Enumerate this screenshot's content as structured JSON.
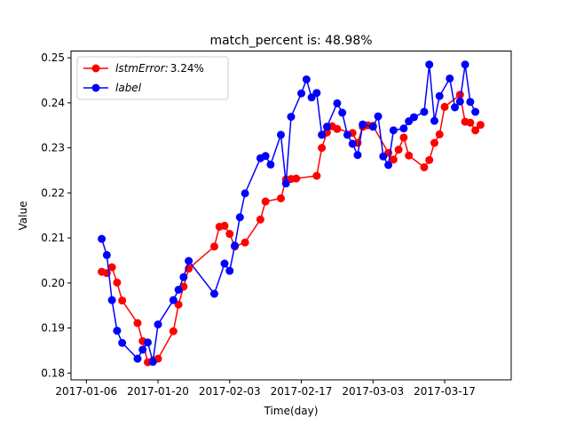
{
  "chart_data": {
    "type": "line",
    "title": "match_percent is: 48.98%",
    "xlabel": "Time(day)",
    "ylabel": "Value",
    "x_axis_type": "date",
    "xlim": [
      "2017-01-03",
      "2017-03-30"
    ],
    "ylim": [
      0.1785,
      0.2515
    ],
    "x_ticks": [
      "2017-01-06",
      "2017-01-20",
      "2017-02-03",
      "2017-02-17",
      "2017-03-03",
      "2017-03-17"
    ],
    "y_ticks": [
      "0.18",
      "0.19",
      "0.20",
      "0.21",
      "0.22",
      "0.23",
      "0.24",
      "0.25"
    ],
    "grid": false,
    "legend_position": "top-left",
    "series": [
      {
        "name": "lstmError: 3.24%",
        "legend_main": "lstmError:",
        "legend_suffix": "3.24%",
        "color": "#ff0000",
        "marker": "circle",
        "x": [
          "2017-01-09",
          "2017-01-10",
          "2017-01-11",
          "2017-01-12",
          "2017-01-13",
          "2017-01-16",
          "2017-01-17",
          "2017-01-18",
          "2017-01-19",
          "2017-01-20",
          "2017-01-23",
          "2017-01-24",
          "2017-01-25",
          "2017-01-26",
          "2017-01-31",
          "2017-02-01",
          "2017-02-02",
          "2017-02-03",
          "2017-02-04",
          "2017-02-06",
          "2017-02-09",
          "2017-02-10",
          "2017-02-13",
          "2017-02-14",
          "2017-02-15",
          "2017-02-16",
          "2017-02-20",
          "2017-02-21",
          "2017-02-22",
          "2017-02-23",
          "2017-02-24",
          "2017-02-27",
          "2017-02-28",
          "2017-03-01",
          "2017-03-02",
          "2017-03-03",
          "2017-03-06",
          "2017-03-07",
          "2017-03-08",
          "2017-03-09",
          "2017-03-10",
          "2017-03-13",
          "2017-03-14",
          "2017-03-15",
          "2017-03-16",
          "2017-03-17",
          "2017-03-20",
          "2017-03-21",
          "2017-03-22",
          "2017-03-23",
          "2017-03-24"
        ],
        "values": [
          0.2025,
          0.2022,
          0.2035,
          0.2001,
          0.1961,
          0.1911,
          0.1871,
          0.1824,
          0.1828,
          0.1832,
          0.1893,
          0.1952,
          0.1992,
          0.2032,
          0.2081,
          0.2125,
          0.2127,
          0.2109,
          0.2081,
          0.209,
          0.2141,
          0.2181,
          0.2188,
          0.223,
          0.2231,
          0.2232,
          0.2238,
          0.23,
          0.2334,
          0.2348,
          0.2342,
          0.2333,
          0.2311,
          0.2347,
          0.235,
          0.2349,
          0.2289,
          0.2274,
          0.2296,
          0.2323,
          0.2283,
          0.2257,
          0.2273,
          0.2311,
          0.233,
          0.2391,
          0.2418,
          0.2358,
          0.2356,
          0.2339,
          0.2351
        ]
      },
      {
        "name": "label",
        "legend_main": "label",
        "legend_suffix": "",
        "color": "#0000ff",
        "marker": "circle",
        "x": [
          "2017-01-09",
          "2017-01-10",
          "2017-01-11",
          "2017-01-12",
          "2017-01-13",
          "2017-01-16",
          "2017-01-17",
          "2017-01-18",
          "2017-01-19",
          "2017-01-20",
          "2017-01-23",
          "2017-01-24",
          "2017-01-25",
          "2017-01-26",
          "2017-01-31",
          "2017-02-02",
          "2017-02-03",
          "2017-02-04",
          "2017-02-05",
          "2017-02-06",
          "2017-02-09",
          "2017-02-10",
          "2017-02-11",
          "2017-02-13",
          "2017-02-14",
          "2017-02-15",
          "2017-02-17",
          "2017-02-18",
          "2017-02-19",
          "2017-02-20",
          "2017-02-21",
          "2017-02-22",
          "2017-02-24",
          "2017-02-25",
          "2017-02-26",
          "2017-02-27",
          "2017-02-28",
          "2017-03-01",
          "2017-03-03",
          "2017-03-04",
          "2017-03-05",
          "2017-03-06",
          "2017-03-07",
          "2017-03-09",
          "2017-03-10",
          "2017-03-11",
          "2017-03-13",
          "2017-03-14",
          "2017-03-15",
          "2017-03-16",
          "2017-03-18",
          "2017-03-19",
          "2017-03-20",
          "2017-03-21",
          "2017-03-22",
          "2017-03-23"
        ],
        "values": [
          0.2098,
          0.2062,
          0.1962,
          0.1894,
          0.1867,
          0.1832,
          0.1852,
          0.1868,
          0.1825,
          0.1908,
          0.1962,
          0.1985,
          0.2013,
          0.2049,
          0.1976,
          0.2043,
          0.2027,
          0.2083,
          0.2146,
          0.2199,
          0.2277,
          0.2282,
          0.2263,
          0.2329,
          0.2221,
          0.2369,
          0.2421,
          0.2452,
          0.2412,
          0.2422,
          0.2329,
          0.2347,
          0.2399,
          0.2378,
          0.2329,
          0.2309,
          0.2284,
          0.2352,
          0.2347,
          0.237,
          0.2281,
          0.2262,
          0.2339,
          0.2343,
          0.2359,
          0.2368,
          0.238,
          0.2485,
          0.236,
          0.2415,
          0.2454,
          0.239,
          0.2403,
          0.2485,
          0.2402,
          0.238
        ]
      }
    ]
  }
}
